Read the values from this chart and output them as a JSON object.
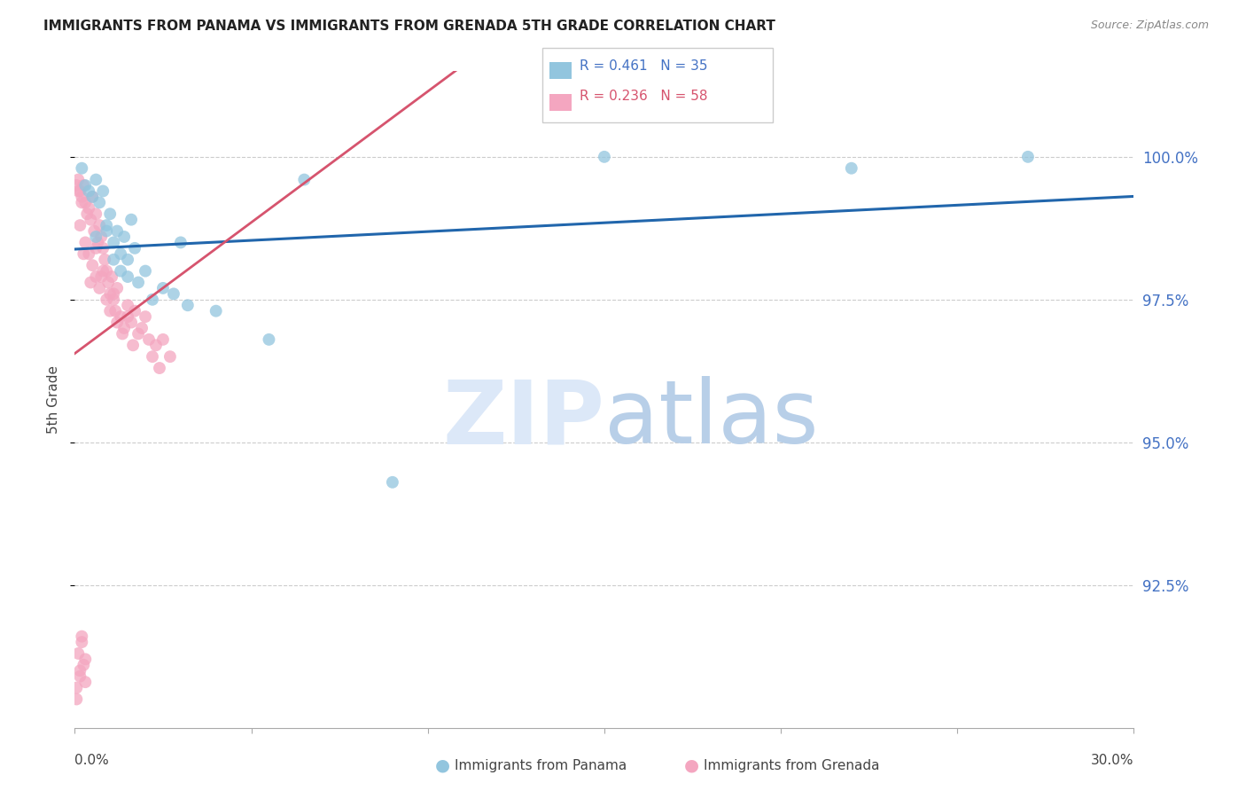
{
  "title": "IMMIGRANTS FROM PANAMA VS IMMIGRANTS FROM GRENADA 5TH GRADE CORRELATION CHART",
  "source": "Source: ZipAtlas.com",
  "ylabel": "5th Grade",
  "yticks": [
    92.5,
    95.0,
    97.5,
    100.0
  ],
  "ytick_labels": [
    "92.5%",
    "95.0%",
    "97.5%",
    "100.0%"
  ],
  "xmin": 0.0,
  "xmax": 30.0,
  "ymin": 90.0,
  "ymax": 101.5,
  "panama_R": 0.461,
  "panama_N": 35,
  "grenada_R": 0.236,
  "grenada_N": 58,
  "panama_color": "#92c5de",
  "grenada_color": "#f4a6c0",
  "panama_line_color": "#2166ac",
  "grenada_line_color": "#d6546e",
  "watermark_zip_color": "#dce8f8",
  "watermark_atlas_color": "#b8cfe8",
  "panama_x": [
    0.2,
    0.3,
    0.5,
    0.6,
    0.7,
    0.8,
    0.9,
    1.0,
    1.1,
    1.2,
    1.3,
    1.4,
    1.5,
    1.6,
    1.7,
    1.8,
    2.0,
    2.2,
    2.5,
    2.8,
    3.0,
    4.0,
    5.5,
    6.5,
    9.0,
    15.0,
    22.0,
    27.0,
    0.4,
    0.6,
    0.9,
    1.1,
    1.3,
    1.5,
    3.2
  ],
  "panama_y": [
    99.8,
    99.5,
    99.3,
    99.6,
    99.2,
    99.4,
    98.8,
    99.0,
    98.5,
    98.7,
    98.3,
    98.6,
    98.2,
    98.9,
    98.4,
    97.8,
    98.0,
    97.5,
    97.7,
    97.6,
    98.5,
    97.3,
    96.8,
    99.6,
    94.3,
    100.0,
    99.8,
    100.0,
    99.4,
    98.6,
    98.7,
    98.2,
    98.0,
    97.9,
    97.4
  ],
  "grenada_x": [
    0.05,
    0.1,
    0.15,
    0.2,
    0.25,
    0.3,
    0.35,
    0.4,
    0.45,
    0.5,
    0.55,
    0.6,
    0.65,
    0.7,
    0.75,
    0.8,
    0.85,
    0.9,
    0.95,
    1.0,
    1.05,
    1.1,
    1.15,
    1.2,
    1.3,
    1.4,
    1.5,
    1.6,
    1.7,
    1.8,
    1.9,
    2.0,
    2.1,
    2.2,
    2.3,
    2.4,
    2.5,
    2.7,
    0.1,
    0.2,
    0.3,
    0.4,
    0.5,
    0.6,
    0.7,
    0.8,
    0.9,
    1.0,
    1.1,
    1.2,
    1.35,
    1.5,
    1.65,
    0.15,
    0.25,
    0.45,
    0.6,
    0.75
  ],
  "grenada_y": [
    99.5,
    99.6,
    99.4,
    99.3,
    99.5,
    99.2,
    99.0,
    99.1,
    98.9,
    99.3,
    98.7,
    99.0,
    98.5,
    98.8,
    98.6,
    98.4,
    98.2,
    98.0,
    97.8,
    97.6,
    97.9,
    97.5,
    97.3,
    97.7,
    97.2,
    97.0,
    97.4,
    97.1,
    97.3,
    96.9,
    97.0,
    97.2,
    96.8,
    96.5,
    96.7,
    96.3,
    96.8,
    96.5,
    99.4,
    99.2,
    98.5,
    98.3,
    98.1,
    97.9,
    97.7,
    98.0,
    97.5,
    97.3,
    97.6,
    97.1,
    96.9,
    97.2,
    96.7,
    98.8,
    98.3,
    97.8,
    98.4,
    97.9
  ],
  "grenada_low_x": [
    0.05,
    0.15,
    0.2,
    0.3,
    0.05,
    0.1,
    0.15,
    0.2,
    0.25,
    0.3
  ],
  "grenada_low_y": [
    90.5,
    91.0,
    91.5,
    91.2,
    90.7,
    91.3,
    90.9,
    91.6,
    91.1,
    90.8
  ]
}
